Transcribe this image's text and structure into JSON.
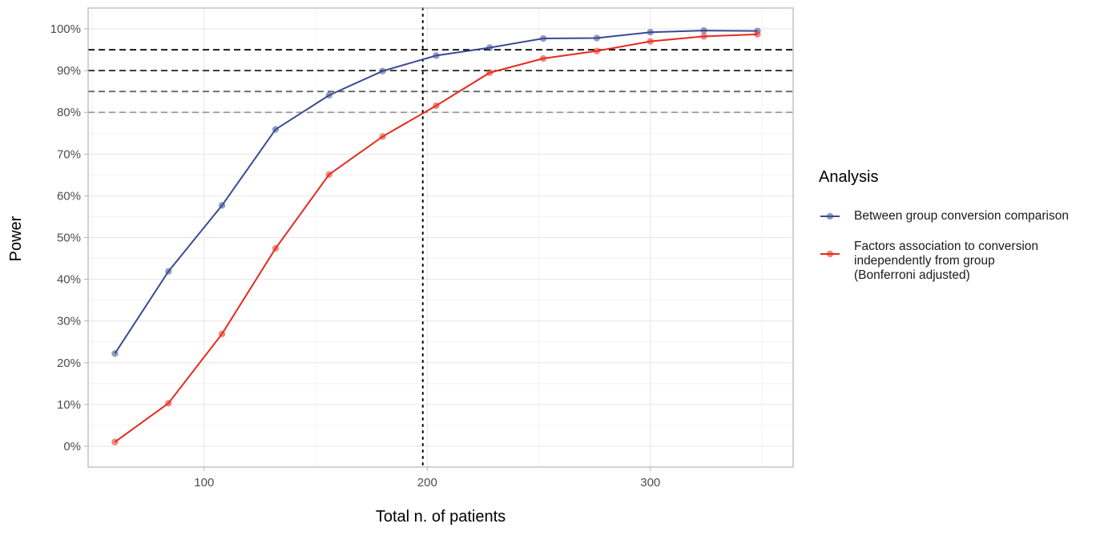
{
  "chart_data": {
    "type": "line",
    "xlabel": "Total n. of patients",
    "ylabel": "Power",
    "xlim": [
      48,
      364
    ],
    "ylim": [
      -0.05,
      1.05
    ],
    "x_ticks": [
      100,
      200,
      300
    ],
    "y_ticks": [
      0,
      0.1,
      0.2,
      0.3,
      0.4,
      0.5,
      0.6,
      0.7,
      0.8,
      0.9,
      1.0
    ],
    "y_tick_labels": [
      "0%",
      "10%",
      "20%",
      "30%",
      "40%",
      "50%",
      "60%",
      "70%",
      "80%",
      "90%",
      "100%"
    ],
    "grid": true,
    "x": [
      60,
      84,
      108,
      132,
      156,
      180,
      204,
      228,
      252,
      276,
      300,
      324,
      348
    ],
    "series": [
      {
        "name": "Between group conversion comparison",
        "color": "#3b4a91",
        "values": [
          0.222,
          0.419,
          0.577,
          0.759,
          0.841,
          0.899,
          0.936,
          0.955,
          0.977,
          0.978,
          0.992,
          0.996,
          0.995
        ]
      },
      {
        "name": "Factors association to conversion\nindependently from group\n(Bonferroni adjusted)",
        "color": "#e8291c",
        "values": [
          0.01,
          0.103,
          0.269,
          0.474,
          0.651,
          0.742,
          0.816,
          0.895,
          0.929,
          0.947,
          0.97,
          0.982,
          0.987
        ]
      }
    ],
    "reference_lines": [
      {
        "axis": "y",
        "value": 0.95,
        "style": "dashed",
        "color": "#000000"
      },
      {
        "axis": "y",
        "value": 0.9,
        "style": "dashed",
        "color": "#222222"
      },
      {
        "axis": "y",
        "value": 0.85,
        "style": "dashed",
        "color": "#666666"
      },
      {
        "axis": "y",
        "value": 0.8,
        "style": "dashed",
        "color": "#999999"
      },
      {
        "axis": "x",
        "value": 198,
        "style": "dotted",
        "color": "#000000"
      }
    ],
    "legend_title": "Analysis",
    "legend_position": "right"
  }
}
